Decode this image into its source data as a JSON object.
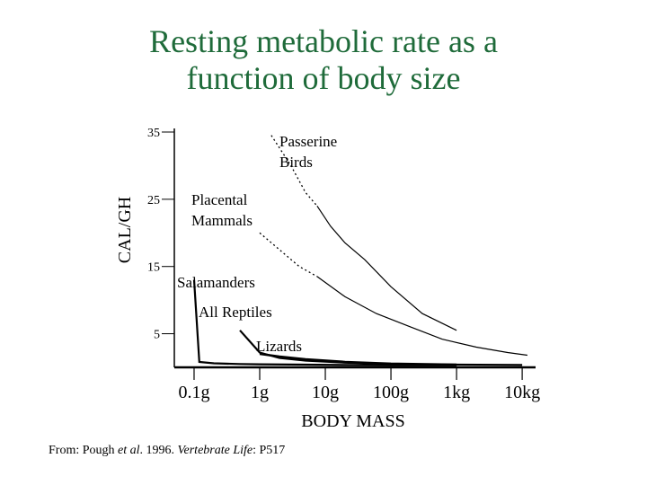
{
  "title_lines": [
    "Resting metabolic rate as a",
    "function of body size"
  ],
  "source": {
    "prefix": "From: Pough ",
    "etal": "et al",
    "middle": ". 1996. ",
    "book": "Vertebrate Life",
    "suffix": ": P517"
  },
  "chart_data": {
    "type": "line",
    "title": "",
    "xlabel": "BODY MASS",
    "ylabel": "CAL/GH",
    "x_scale": "log",
    "x_unit": "g",
    "xlim": [
      0.05,
      16000
    ],
    "ylim": [
      0,
      35
    ],
    "x_ticks": [
      {
        "value": 0.1,
        "label": "0.1g"
      },
      {
        "value": 1,
        "label": "1g"
      },
      {
        "value": 10,
        "label": "10g"
      },
      {
        "value": 100,
        "label": "100g"
      },
      {
        "value": 1000,
        "label": "1kg"
      },
      {
        "value": 10000,
        "label": "10kg"
      }
    ],
    "y_ticks": [
      {
        "value": 5,
        "label": "5"
      },
      {
        "value": 15,
        "label": "15"
      },
      {
        "value": 25,
        "label": "25"
      },
      {
        "value": 35,
        "label": "35"
      }
    ],
    "series": [
      {
        "name": "Passerine Birds",
        "label_lines": [
          "Passerine",
          "Birds"
        ],
        "dashed": {
          "x": [
            1.5,
            3,
            5,
            7.5
          ],
          "y": [
            34.5,
            30,
            26,
            24
          ]
        },
        "solid": {
          "x": [
            7.5,
            12,
            20,
            40,
            100,
            300,
            1000
          ],
          "y": [
            24,
            21,
            18.5,
            16,
            12,
            8,
            5.5
          ]
        }
      },
      {
        "name": "Placental Mammals",
        "label_lines": [
          "Placental",
          "Mammals"
        ],
        "dashed": {
          "x": [
            1,
            2,
            4,
            7.5
          ],
          "y": [
            20,
            17.5,
            15,
            13.5
          ]
        },
        "solid": {
          "x": [
            7.5,
            20,
            60,
            200,
            600,
            2000,
            6000,
            12000
          ],
          "y": [
            13.5,
            10.5,
            8,
            6,
            4.2,
            3,
            2.2,
            1.8
          ]
        }
      },
      {
        "name": "Salamanders",
        "label_lines": [
          "Salamanders"
        ],
        "dashed": {
          "x": [],
          "y": []
        },
        "solid": {
          "x": [
            0.1,
            0.12,
            0.2,
            0.5,
            1,
            5,
            20,
            100,
            1000
          ],
          "y": [
            13,
            0.8,
            0.6,
            0.5,
            0.45,
            0.4,
            0.35,
            0.3,
            0.3
          ]
        }
      },
      {
        "name": "All Reptiles",
        "label_lines": [
          "All Reptiles"
        ],
        "dashed": {
          "x": [],
          "y": []
        },
        "solid": {
          "x": [
            0.5,
            1,
            2,
            5,
            20,
            100,
            1000,
            10000
          ],
          "y": [
            5.5,
            2.2,
            1.4,
            1.0,
            0.7,
            0.5,
            0.4,
            0.35
          ]
        }
      },
      {
        "name": "Lizards",
        "label_lines": [
          "Lizards"
        ],
        "dashed": {
          "x": [],
          "y": []
        },
        "solid": {
          "x": [
            1,
            2,
            5,
            20,
            100,
            1000
          ],
          "y": [
            2.0,
            1.6,
            1.2,
            0.8,
            0.55,
            0.4
          ]
        }
      }
    ]
  }
}
